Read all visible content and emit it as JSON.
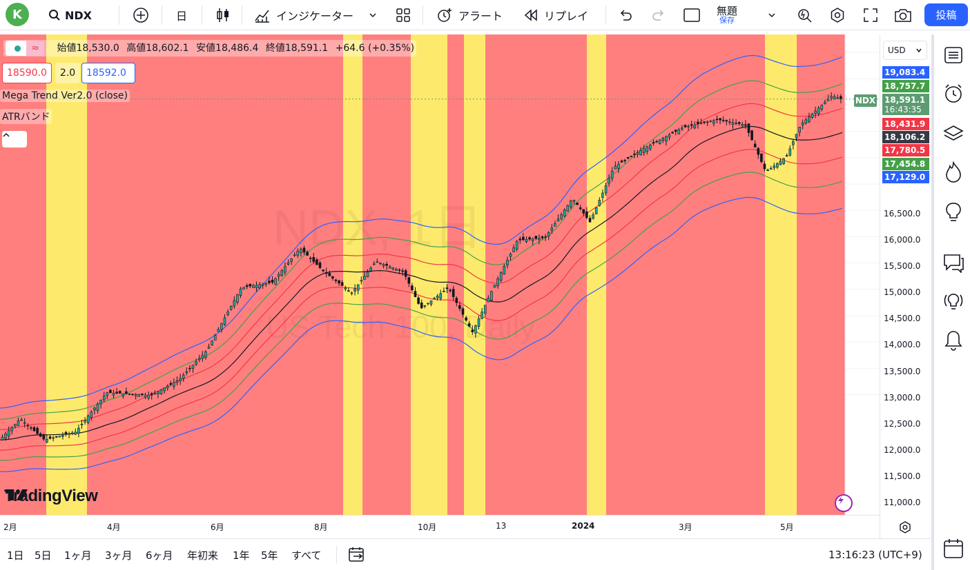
{
  "toolbar": {
    "avatar_letter": "K",
    "symbol": "NDX",
    "interval": "日",
    "indicators_label": "インジケーター",
    "alert_label": "アラート",
    "replay_label": "リプレイ",
    "layout_title": "無題",
    "layout_status": "保存",
    "publish_label": "投稿"
  },
  "legend": {
    "open_label": "始値",
    "open": "18,530.0",
    "high_label": "高値",
    "high": "18,602.1",
    "low_label": "安値",
    "low": "18,486.4",
    "close_label": "終値",
    "close": "18,591.1",
    "change": "+64.6 (+0.35%)",
    "bid": "18590.0",
    "spread": "2.0",
    "ask": "18592.0",
    "indicator1": "Mega Trend Ver2.0 (close)",
    "indicator2": "ATRバンド"
  },
  "watermark": {
    "line1": "NDX, 1日",
    "line2": "US Tech 100, Daily"
  },
  "brand": {
    "logo_text": "TradingView"
  },
  "price_axis": {
    "currency": "USD",
    "labels": [
      "16,500.0",
      "16,000.0",
      "15,500.0",
      "15,000.0",
      "14,500.0",
      "14,000.0",
      "13,500.0",
      "13,000.0",
      "12,500.0",
      "12,000.0",
      "11,500.0",
      "11,000.0"
    ],
    "tags": [
      {
        "text": "19,083.4",
        "color": "#2962ff"
      },
      {
        "text": "18,757.7",
        "color": "#43a047"
      },
      {
        "text": "18,591.1",
        "color": "#5d9c73"
      },
      {
        "text": "16:43:35",
        "color": "#5d9c73"
      },
      {
        "text": "18,431.9",
        "color": "#f23645"
      },
      {
        "text": "18,106.2",
        "color": "#363a45"
      },
      {
        "text": "17,780.5",
        "color": "#f23645"
      },
      {
        "text": "17,454.8",
        "color": "#43a047"
      },
      {
        "text": "17,129.0",
        "color": "#2962ff"
      }
    ],
    "symbol_tag": "NDX"
  },
  "time_axis": {
    "labels": [
      "2月",
      "4月",
      "6月",
      "8月",
      "10月",
      "13",
      "2024",
      "3月",
      "5月"
    ]
  },
  "bottom": {
    "ranges": [
      "1日",
      "5日",
      "1ヶ月",
      "3ヶ月",
      "6ヶ月",
      "年初来",
      "1年",
      "5年",
      "すべて"
    ],
    "clock": "13:16:23 (UTC+9)"
  },
  "colors": {
    "red_zone": "#ff7f7f",
    "yellow_zone": "#fdea6c",
    "accent": "#2962ff"
  }
}
